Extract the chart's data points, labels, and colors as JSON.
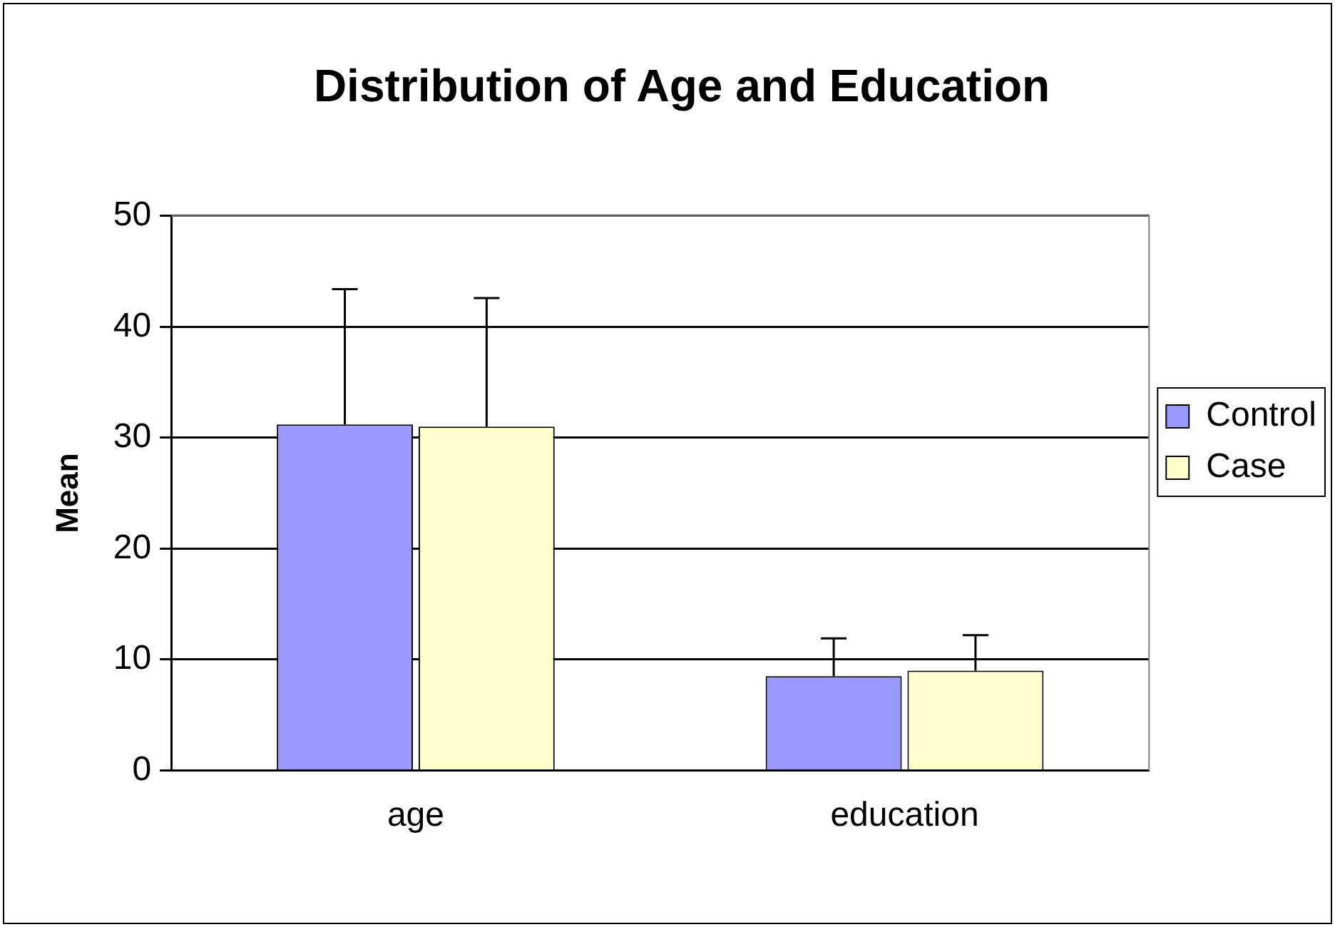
{
  "chart_data": {
    "type": "bar",
    "title": "Distribution of Age and Education",
    "ylabel": "Mean",
    "categories": [
      "age",
      "education"
    ],
    "series": [
      {
        "name": "Control",
        "color": "#9999ff",
        "values": [
          31.2,
          8.5
        ],
        "errors": [
          [
            31.2,
            43.4
          ],
          [
            8.5,
            11.9
          ]
        ]
      },
      {
        "name": "Case",
        "color": "#ffffcc",
        "values": [
          31.0,
          9.0
        ],
        "errors": [
          [
            31.0,
            42.6
          ],
          [
            9.0,
            12.2
          ]
        ]
      }
    ],
    "ylim": [
      0,
      50
    ],
    "yticks": [
      0,
      10,
      20,
      30,
      40,
      50
    ],
    "grid": "y",
    "legend": "right"
  }
}
